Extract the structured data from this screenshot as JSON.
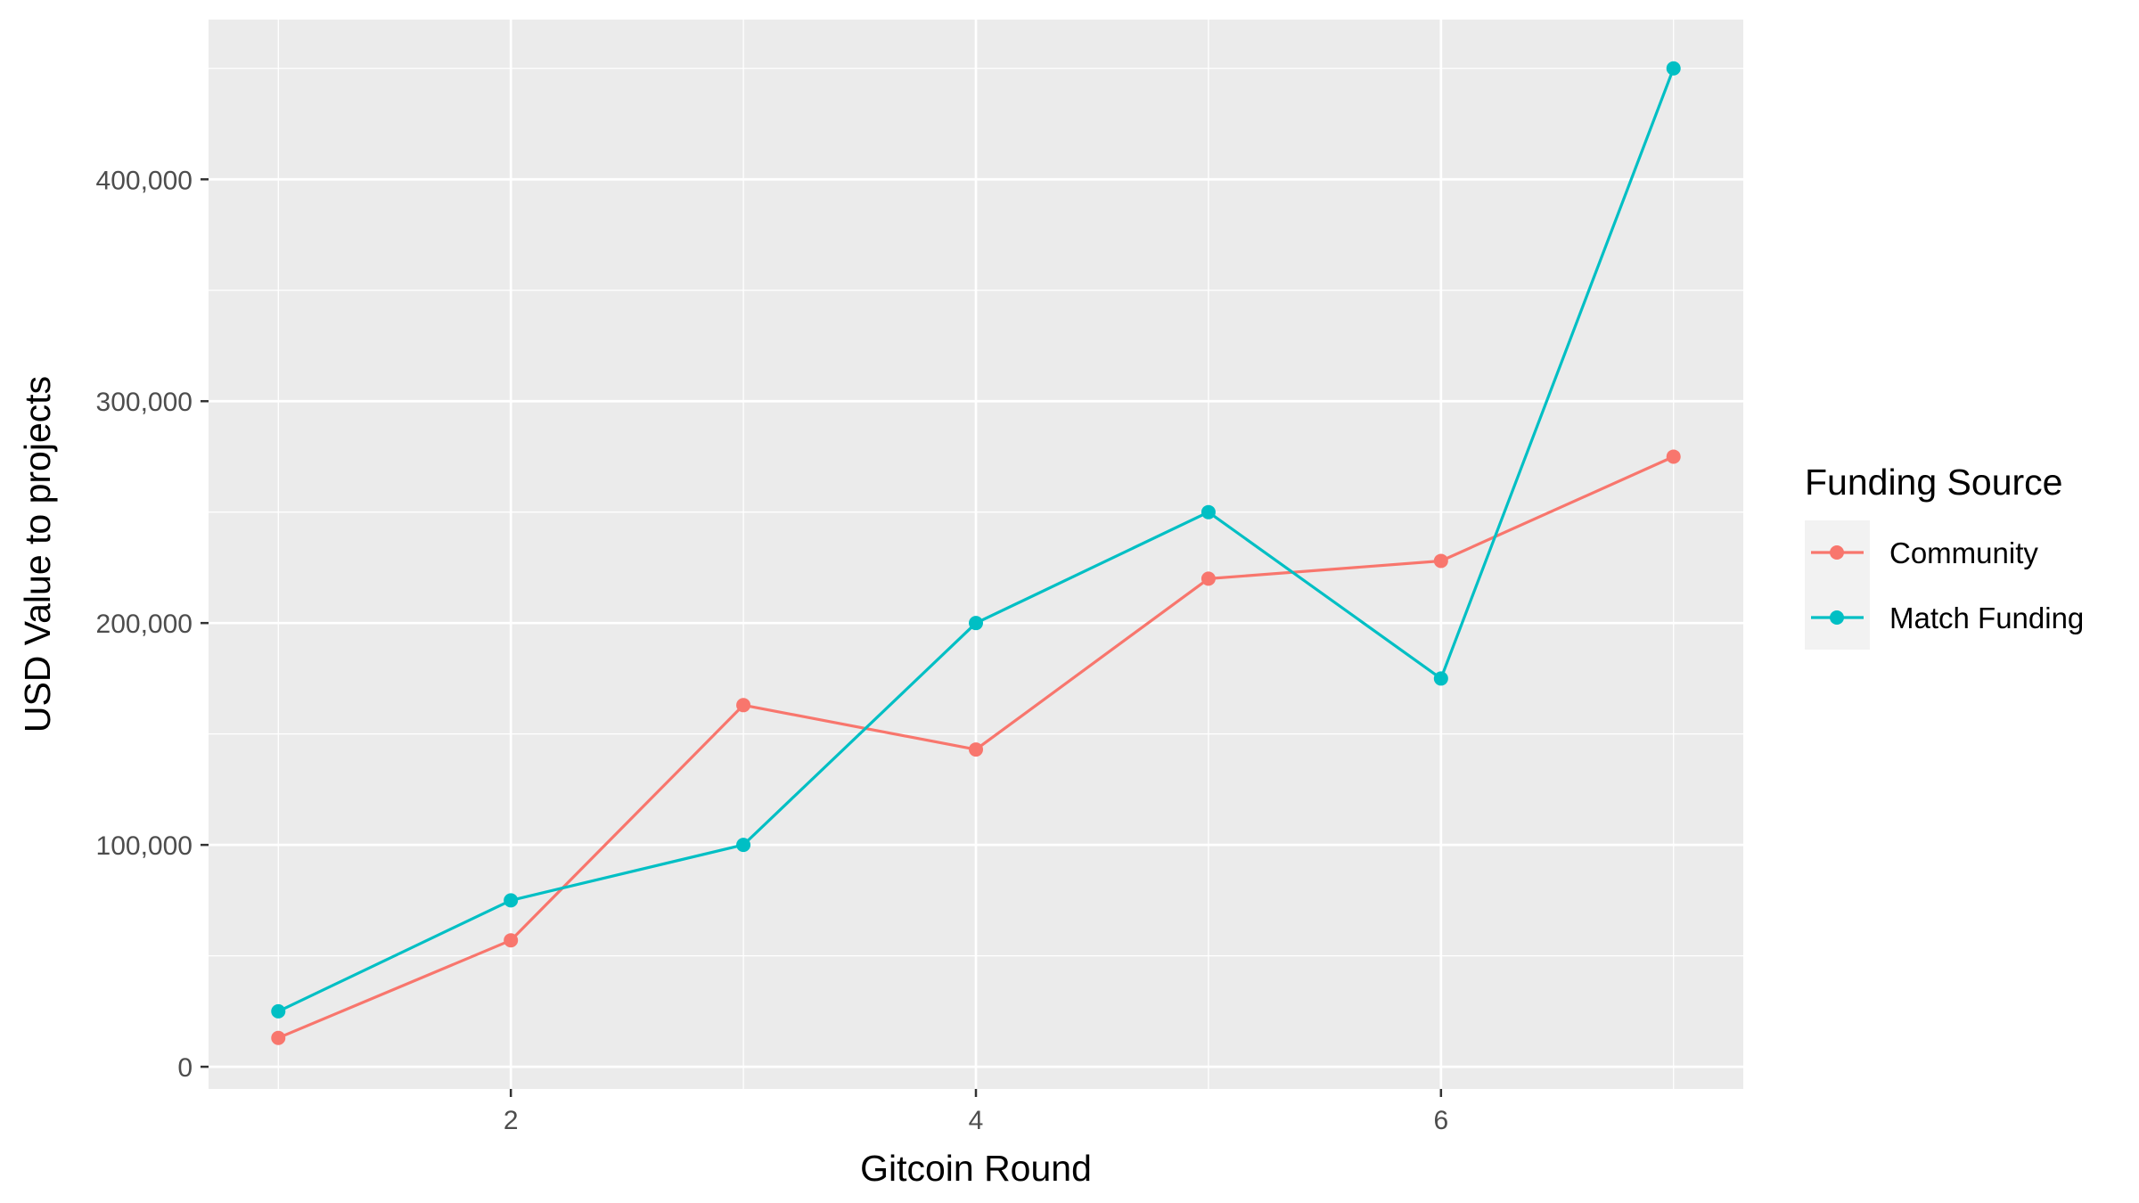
{
  "chart_data": {
    "type": "line",
    "xlabel": "Gitcoin Round",
    "ylabel": "USD Value to projects",
    "x": [
      1,
      2,
      3,
      4,
      5,
      6,
      7
    ],
    "xlim": [
      0.7,
      7.3
    ],
    "ylim": [
      -10000,
      472000
    ],
    "x_ticks": [
      2,
      4,
      6
    ],
    "y_ticks": [
      0,
      100000,
      200000,
      300000,
      400000
    ],
    "x_tick_labels": [
      "2",
      "4",
      "6"
    ],
    "y_tick_labels": [
      "0",
      "100,000",
      "200,000",
      "300,000",
      "400,000"
    ],
    "grid": true,
    "legend_position": "right",
    "legend_title": "Funding Source",
    "series": [
      {
        "name": "Community",
        "color": "#F8766D",
        "values": [
          13000,
          57000,
          163000,
          143000,
          220000,
          228000,
          275000
        ]
      },
      {
        "name": "Match Funding",
        "color": "#00BFC4",
        "values": [
          25000,
          75000,
          100000,
          200000,
          250000,
          175000,
          450000
        ]
      }
    ]
  }
}
